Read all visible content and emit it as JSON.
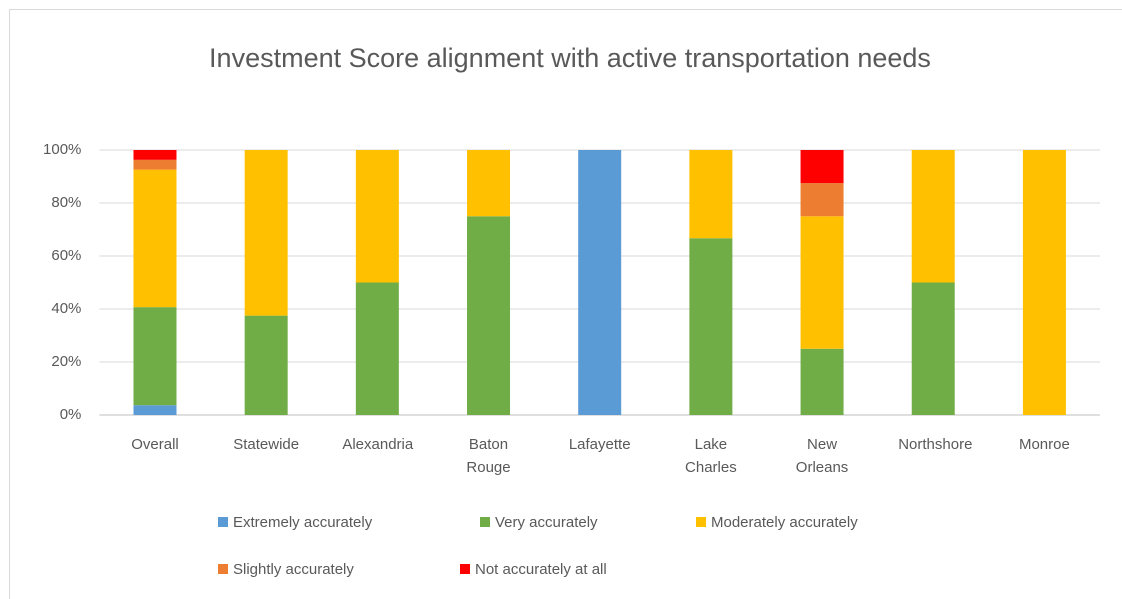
{
  "chart_data": {
    "type": "stacked_bar",
    "title": "Investment Score alignment with active transportation needs",
    "categories": [
      "Overall",
      "Statewide",
      "Alexandria",
      "Baton Rouge",
      "Lafayette",
      "Lake Charles",
      "New Orleans",
      "Northshore",
      "Monroe"
    ],
    "series": [
      {
        "name": "Extremely accurately",
        "color": "#5b9bd5",
        "values": [
          3.7,
          0,
          0,
          0,
          100,
          0,
          0,
          0,
          0
        ]
      },
      {
        "name": "Very accurately",
        "color": "#70ad47",
        "values": [
          37.0,
          37.5,
          50,
          75,
          0,
          66.7,
          25,
          50,
          0
        ]
      },
      {
        "name": "Moderately accurately",
        "color": "#ffc000",
        "values": [
          51.9,
          62.5,
          50,
          25,
          0,
          33.3,
          50,
          50,
          100
        ]
      },
      {
        "name": "Slightly accurately",
        "color": "#ed7d31",
        "values": [
          3.7,
          0,
          0,
          0,
          0,
          0,
          12.5,
          0,
          0
        ]
      },
      {
        "name": "Not accurately at all",
        "color": "#ff0000",
        "values": [
          3.7,
          0,
          0,
          0,
          0,
          0,
          12.5,
          0,
          0
        ]
      }
    ],
    "ylim": [
      0,
      100
    ],
    "yticks": [
      {
        "value": 0,
        "label": "0%"
      },
      {
        "value": 20,
        "label": "20%"
      },
      {
        "value": 40,
        "label": "40%"
      },
      {
        "value": 60,
        "label": "60%"
      },
      {
        "value": 80,
        "label": "80%"
      },
      {
        "value": 100,
        "label": "100%"
      }
    ],
    "grid": true,
    "legend": "bottom"
  }
}
